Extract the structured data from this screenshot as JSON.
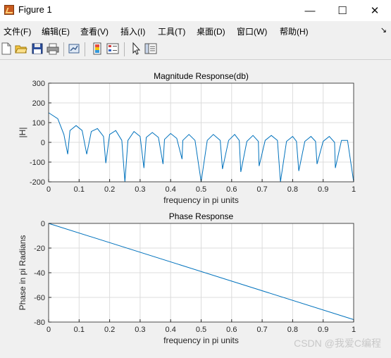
{
  "window": {
    "title": "Figure 1",
    "minimize_glyph": "—",
    "maximize_glyph": "☐",
    "close_glyph": "✕"
  },
  "menubar": {
    "items": [
      {
        "label": "文件(F)"
      },
      {
        "label": "编辑(E)"
      },
      {
        "label": "查看(V)"
      },
      {
        "label": "插入(I)"
      },
      {
        "label": "工具(T)"
      },
      {
        "label": "桌面(D)"
      },
      {
        "label": "窗口(W)"
      },
      {
        "label": "帮助(H)"
      }
    ],
    "overflow_glyph": "↘"
  },
  "toolbar": {
    "icons": [
      "new-figure-icon",
      "open-file-icon",
      "save-icon",
      "print-icon",
      "link-plot-icon",
      "colorbar-icon",
      "legend-icon",
      "pointer-icon",
      "property-inspector-icon"
    ]
  },
  "colors": {
    "line": "#0072bd",
    "grid": "#dcdcdc",
    "axes": "#262626"
  },
  "chart_data": [
    {
      "type": "line",
      "title": "Magnitude Response(db)",
      "xlabel": "frequency in pi units",
      "ylabel": "|H|",
      "xlim": [
        0,
        1
      ],
      "ylim": [
        -200,
        300
      ],
      "xticks": [
        "0",
        "0.1",
        "0.2",
        "0.3",
        "0.4",
        "0.5",
        "0.6",
        "0.7",
        "0.8",
        "0.9",
        "1"
      ],
      "yticks": [
        "-200",
        "-100",
        "0",
        "100",
        "200",
        "300"
      ],
      "grid": true,
      "series": [
        {
          "x": [
            0,
            0.03,
            0.05,
            0.0625,
            0.07,
            0.09,
            0.11,
            0.125,
            0.14,
            0.16,
            0.18,
            0.1875,
            0.2,
            0.22,
            0.24,
            0.25,
            0.26,
            0.28,
            0.3,
            0.3125,
            0.32,
            0.34,
            0.36,
            0.375,
            0.38,
            0.4,
            0.42,
            0.4375,
            0.44,
            0.46,
            0.48,
            0.5,
            0.52,
            0.54,
            0.5625,
            0.57,
            0.59,
            0.61,
            0.625,
            0.63,
            0.65,
            0.67,
            0.6875,
            0.69,
            0.71,
            0.73,
            0.75,
            0.76,
            0.78,
            0.8,
            0.8125,
            0.82,
            0.84,
            0.86,
            0.875,
            0.88,
            0.9,
            0.92,
            0.9375,
            0.94,
            0.96,
            0.98,
            1.0
          ],
          "y": [
            150,
            120,
            40,
            -60,
            60,
            85,
            60,
            -60,
            55,
            70,
            30,
            -105,
            40,
            60,
            10,
            -200,
            10,
            55,
            30,
            -130,
            25,
            50,
            25,
            -110,
            15,
            45,
            20,
            -85,
            10,
            40,
            10,
            -200,
            10,
            40,
            10,
            -135,
            10,
            40,
            10,
            -150,
            5,
            35,
            5,
            -120,
            10,
            35,
            10,
            -200,
            5,
            30,
            5,
            -145,
            5,
            30,
            5,
            -110,
            5,
            30,
            0,
            -130,
            10,
            10,
            -200
          ]
        }
      ]
    },
    {
      "type": "line",
      "title": "Phase Response",
      "xlabel": "frequency in pi units",
      "ylabel": "Phase in pi Radians",
      "xlim": [
        0,
        1
      ],
      "ylim": [
        -80,
        0
      ],
      "xticks": [
        "0",
        "0.1",
        "0.2",
        "0.3",
        "0.4",
        "0.5",
        "0.6",
        "0.7",
        "0.8",
        "0.9",
        "1"
      ],
      "yticks": [
        "-80",
        "-60",
        "-40",
        "-20",
        "0"
      ],
      "grid": true,
      "series": [
        {
          "x": [
            0,
            1
          ],
          "y": [
            0,
            -78
          ]
        }
      ]
    }
  ],
  "watermark": "CSDN @我爱C编程"
}
